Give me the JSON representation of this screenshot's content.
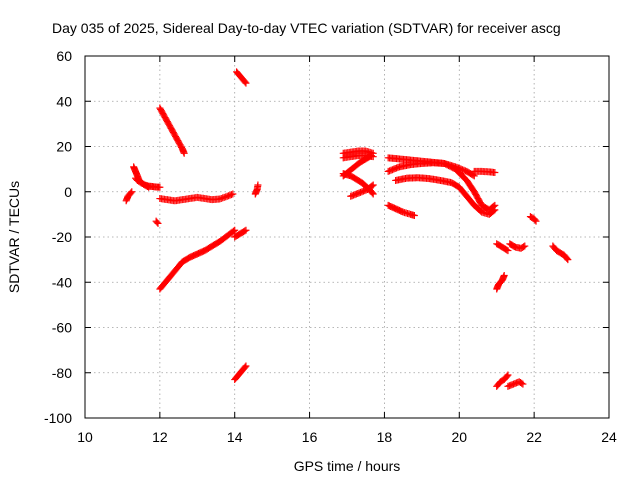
{
  "chart_data": {
    "type": "scatter",
    "title": "Day 035 of 2025, Sidereal Day-to-day VTEC variation (SDTVAR) for receiver ascg",
    "xlabel": "GPS time / hours",
    "ylabel": "SDTVAR / TECUs",
    "xlim": [
      10,
      24
    ],
    "ylim": [
      -100,
      60
    ],
    "xticks": [
      10,
      12,
      14,
      16,
      18,
      20,
      22,
      24
    ],
    "yticks": [
      60,
      40,
      20,
      0,
      -20,
      -40,
      -60,
      -80,
      -100
    ],
    "grid": true,
    "marker": "plus",
    "color": "#ff0000",
    "series": [
      {
        "name": "s1",
        "x": [
          11.1,
          11.15,
          11.2,
          11.25
        ],
        "y": [
          -4,
          -2,
          -1,
          0
        ]
      },
      {
        "name": "s2",
        "x": [
          11.3,
          11.35,
          11.4,
          11.45,
          11.5,
          11.6,
          11.7,
          11.8,
          11.9,
          12.0
        ],
        "y": [
          11,
          9,
          7,
          5,
          4,
          3,
          2.5,
          2.3,
          2.1,
          2
        ]
      },
      {
        "name": "s3",
        "x": [
          11.35,
          11.4,
          11.5,
          11.6,
          11.7
        ],
        "y": [
          6,
          5,
          4,
          3,
          2
        ]
      },
      {
        "name": "s4",
        "x": [
          11.9,
          11.95
        ],
        "y": [
          -13,
          -14
        ]
      },
      {
        "name": "s5",
        "x": [
          12.0,
          12.1,
          12.2,
          12.3,
          12.4,
          12.5,
          12.6,
          12.65
        ],
        "y": [
          37,
          34,
          31,
          28,
          25,
          22,
          19,
          17
        ]
      },
      {
        "name": "s6",
        "x": [
          12.0,
          12.2,
          12.4,
          12.6,
          12.8,
          13.0,
          13.2,
          13.4,
          13.6,
          13.8,
          13.95
        ],
        "y": [
          -3,
          -3.5,
          -4,
          -3.5,
          -3,
          -2.5,
          -3,
          -3.5,
          -3.2,
          -2,
          -1
        ]
      },
      {
        "name": "s7",
        "x": [
          12.0,
          12.2,
          12.4,
          12.6,
          12.8,
          13.0,
          13.2,
          13.4,
          13.6,
          13.8,
          14.0
        ],
        "y": [
          -43,
          -39,
          -35,
          -31,
          -29,
          -27.5,
          -26,
          -24,
          -22,
          -19.5,
          -17
        ]
      },
      {
        "name": "s8",
        "x": [
          14.0,
          14.1,
          14.2,
          14.3
        ],
        "y": [
          -20,
          -19,
          -18,
          -17
        ]
      },
      {
        "name": "s9",
        "x": [
          14.05,
          14.15,
          14.25,
          14.3
        ],
        "y": [
          53,
          51,
          49,
          48
        ]
      },
      {
        "name": "s10",
        "x": [
          14.0,
          14.1,
          14.2,
          14.3
        ],
        "y": [
          -83,
          -81,
          -79,
          -77
        ]
      },
      {
        "name": "s11",
        "x": [
          14.55,
          14.6,
          14.62
        ],
        "y": [
          -1,
          1,
          3
        ]
      },
      {
        "name": "s12",
        "x": [
          16.9,
          17.1,
          17.3,
          17.5,
          17.7
        ],
        "y": [
          17,
          17.5,
          18,
          18,
          17
        ]
      },
      {
        "name": "s13",
        "x": [
          16.9,
          17.1,
          17.3,
          17.5,
          17.7
        ],
        "y": [
          15,
          15.5,
          16,
          16,
          15.5
        ]
      },
      {
        "name": "s14",
        "x": [
          16.9,
          17.05,
          17.2,
          17.35,
          17.5,
          17.65
        ],
        "y": [
          7,
          9,
          11,
          13,
          14.5,
          16
        ]
      },
      {
        "name": "s15",
        "x": [
          16.9,
          17.0,
          17.1,
          17.2,
          17.3,
          17.4,
          17.5,
          17.6,
          17.7
        ],
        "y": [
          8,
          7.5,
          7,
          6,
          5,
          4,
          2.5,
          1,
          -1
        ]
      },
      {
        "name": "s16",
        "x": [
          17.1,
          17.25,
          17.4,
          17.55,
          17.7
        ],
        "y": [
          -2,
          -1,
          0,
          1,
          3
        ]
      },
      {
        "name": "s17",
        "x": [
          18.1,
          18.4,
          18.7,
          19.0,
          19.3,
          19.6,
          19.9,
          20.2,
          20.4
        ],
        "y": [
          15,
          14.5,
          14,
          13.5,
          13,
          12.5,
          11,
          9,
          7
        ]
      },
      {
        "name": "s18",
        "x": [
          18.1,
          18.4,
          18.7,
          19.0,
          19.3,
          19.6,
          19.9,
          20.2,
          20.4,
          20.6,
          20.8,
          20.95
        ],
        "y": [
          9,
          11,
          12,
          12.5,
          12.8,
          12.5,
          10,
          5,
          0,
          -6,
          -8,
          -6
        ]
      },
      {
        "name": "s19",
        "x": [
          18.3,
          18.6,
          18.9,
          19.2,
          19.5,
          19.8,
          20.0,
          20.2,
          20.4,
          20.6,
          20.8,
          20.95
        ],
        "y": [
          5,
          6,
          6.2,
          5.8,
          5,
          4,
          2,
          -2,
          -6,
          -9,
          -10,
          -8
        ]
      },
      {
        "name": "s20",
        "x": [
          18.1,
          18.3,
          18.5,
          18.7,
          18.8
        ],
        "y": [
          -6,
          -7.5,
          -9,
          -10,
          -10.5
        ]
      },
      {
        "name": "s21",
        "x": [
          20.4,
          20.6,
          20.8,
          20.95
        ],
        "y": [
          9,
          9,
          8.8,
          8.5
        ]
      },
      {
        "name": "s22",
        "x": [
          21.0,
          21.1,
          21.2,
          21.3
        ],
        "y": [
          -23,
          -24,
          -25,
          -26
        ]
      },
      {
        "name": "s23",
        "x": [
          21.35,
          21.5,
          21.65,
          21.75
        ],
        "y": [
          -23,
          -24.5,
          -25,
          -24
        ]
      },
      {
        "name": "s24",
        "x": [
          21.0,
          21.05,
          21.1,
          21.15,
          21.2
        ],
        "y": [
          -43,
          -41,
          -40,
          -39,
          -37
        ]
      },
      {
        "name": "s25",
        "x": [
          21.0,
          21.1,
          21.2,
          21.3
        ],
        "y": [
          -86,
          -84,
          -83,
          -81
        ]
      },
      {
        "name": "s26",
        "x": [
          21.3,
          21.45,
          21.6,
          21.7
        ],
        "y": [
          -86,
          -85,
          -84,
          -85
        ]
      },
      {
        "name": "s27",
        "x": [
          21.9,
          22.0,
          22.05
        ],
        "y": [
          -11,
          -12,
          -13
        ]
      },
      {
        "name": "s28",
        "x": [
          22.5,
          22.6,
          22.7,
          22.8,
          22.9
        ],
        "y": [
          -24,
          -26,
          -27,
          -28,
          -30
        ]
      }
    ]
  }
}
